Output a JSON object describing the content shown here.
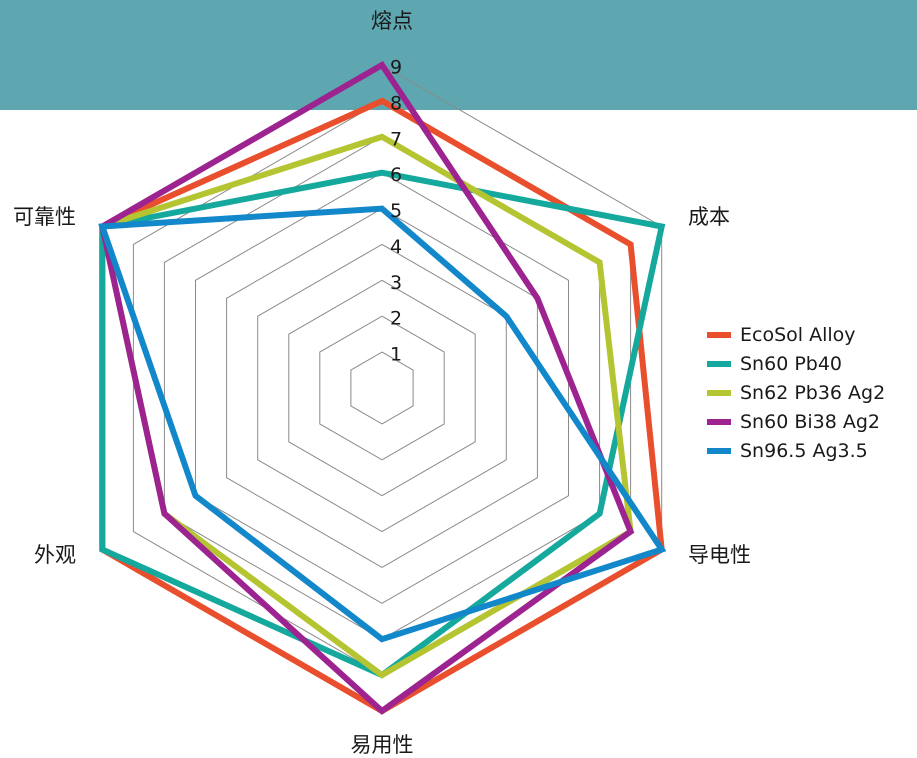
{
  "chart_data": {
    "type": "radar",
    "axes": [
      "熔点",
      "成本",
      "导电性",
      "易用性",
      "外观",
      "可靠性"
    ],
    "rlim": [
      0,
      9
    ],
    "ticks": [
      "1",
      "2",
      "3",
      "4",
      "5",
      "6",
      "7",
      "8",
      "9"
    ],
    "grid": true,
    "legend_position": "right",
    "series": [
      {
        "name": "EcoSol Alloy",
        "color": "#e94e2d",
        "values": [
          8,
          8,
          9,
          9,
          9,
          9
        ]
      },
      {
        "name": "Sn60 Pb40",
        "color": "#15a89c",
        "values": [
          6,
          9,
          7,
          8,
          9,
          9
        ]
      },
      {
        "name": "Sn62 Pb36 Ag2",
        "color": "#b5c532",
        "values": [
          7,
          7,
          8,
          8,
          7,
          9
        ]
      },
      {
        "name": "Sn60 Bi38 Ag2",
        "color": "#9c2390",
        "values": [
          9,
          5,
          8,
          9,
          7,
          9
        ]
      },
      {
        "name": "Sn96.5 Ag3.5",
        "color": "#1287c9",
        "values": [
          5,
          4,
          9,
          7,
          6,
          9
        ]
      }
    ]
  }
}
